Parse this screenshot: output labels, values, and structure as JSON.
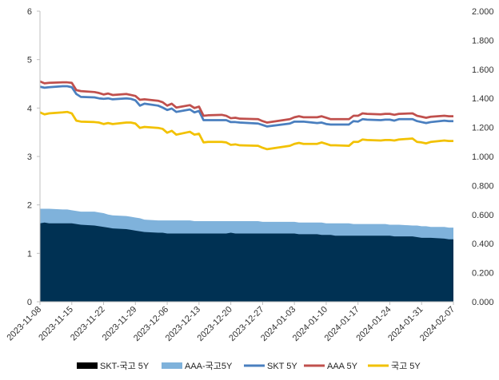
{
  "chart_data": {
    "type": "area",
    "title": "",
    "xlabel": "",
    "ylabel": "",
    "y_left": {
      "min": 0,
      "max": 6,
      "ticks": [
        "0",
        "1",
        "2",
        "3",
        "4",
        "5",
        "6"
      ]
    },
    "y_right": {
      "min": 0,
      "max": 2,
      "ticks": [
        "0.000",
        "0.200",
        "0.400",
        "0.600",
        "0.800",
        "1.000",
        "1.200",
        "1.400",
        "1.600",
        "1.800",
        "2.000"
      ]
    },
    "grid": false,
    "legend_position": "bottom",
    "x_ticks": [
      "2023-11-08",
      "2023-11-15",
      "2023-11-22",
      "2023-11-29",
      "2023-12-06",
      "2023-12-13",
      "2023-12-20",
      "2023-12-27",
      "2024-01-03",
      "2024-01-10",
      "2024-01-17",
      "2024-01-24",
      "2024-01-31",
      "2024-02-07"
    ],
    "x": [
      "2023-11-08",
      "2023-11-09",
      "2023-11-10",
      "2023-11-13",
      "2023-11-14",
      "2023-11-15",
      "2023-11-16",
      "2023-11-17",
      "2023-11-20",
      "2023-11-21",
      "2023-11-22",
      "2023-11-23",
      "2023-11-24",
      "2023-11-27",
      "2023-11-28",
      "2023-11-29",
      "2023-11-30",
      "2023-12-01",
      "2023-12-04",
      "2023-12-05",
      "2023-12-06",
      "2023-12-07",
      "2023-12-08",
      "2023-12-11",
      "2023-12-12",
      "2023-12-13",
      "2023-12-14",
      "2023-12-15",
      "2023-12-18",
      "2023-12-19",
      "2023-12-20",
      "2023-12-21",
      "2023-12-22",
      "2023-12-26",
      "2023-12-27",
      "2023-12-28",
      "2024-01-02",
      "2024-01-03",
      "2024-01-04",
      "2024-01-05",
      "2024-01-08",
      "2024-01-09",
      "2024-01-10",
      "2024-01-11",
      "2024-01-12",
      "2024-01-15",
      "2024-01-16",
      "2024-01-17",
      "2024-01-18",
      "2024-01-19",
      "2024-01-22",
      "2024-01-23",
      "2024-01-24",
      "2024-01-25",
      "2024-01-26",
      "2024-01-29",
      "2024-01-30",
      "2024-01-31",
      "2024-02-01",
      "2024-02-02",
      "2024-02-05",
      "2024-02-06",
      "2024-02-07"
    ],
    "series": [
      {
        "name": "SKT-국고 5Y",
        "type": "area",
        "axis": "right",
        "color": "#003153",
        "values": [
          0.54,
          0.545,
          0.54,
          0.54,
          0.54,
          0.54,
          0.535,
          0.53,
          0.525,
          0.52,
          0.515,
          0.51,
          0.505,
          0.5,
          0.495,
          0.49,
          0.485,
          0.48,
          0.475,
          0.475,
          0.47,
          0.47,
          0.47,
          0.47,
          0.47,
          0.47,
          0.47,
          0.47,
          0.47,
          0.47,
          0.475,
          0.47,
          0.47,
          0.47,
          0.47,
          0.47,
          0.47,
          0.47,
          0.465,
          0.465,
          0.465,
          0.46,
          0.46,
          0.46,
          0.455,
          0.455,
          0.455,
          0.455,
          0.455,
          0.455,
          0.455,
          0.455,
          0.455,
          0.45,
          0.45,
          0.45,
          0.445,
          0.44,
          0.44,
          0.44,
          0.435,
          0.43,
          0.43
        ]
      },
      {
        "name": "AAA-국고5Y",
        "type": "area",
        "axis": "right",
        "color": "#7FB2DB",
        "values": [
          0.64,
          0.64,
          0.64,
          0.635,
          0.635,
          0.63,
          0.625,
          0.62,
          0.62,
          0.615,
          0.61,
          0.6,
          0.595,
          0.59,
          0.585,
          0.58,
          0.575,
          0.565,
          0.56,
          0.56,
          0.56,
          0.56,
          0.56,
          0.56,
          0.555,
          0.555,
          0.555,
          0.555,
          0.555,
          0.555,
          0.555,
          0.555,
          0.555,
          0.555,
          0.55,
          0.55,
          0.55,
          0.55,
          0.545,
          0.545,
          0.545,
          0.545,
          0.54,
          0.54,
          0.54,
          0.54,
          0.535,
          0.535,
          0.535,
          0.535,
          0.535,
          0.535,
          0.53,
          0.53,
          0.53,
          0.525,
          0.525,
          0.52,
          0.52,
          0.515,
          0.515,
          0.51,
          0.51
        ]
      },
      {
        "name": "SKT 5Y",
        "type": "line",
        "axis": "left",
        "color": "#4A7FBF",
        "values": [
          4.44,
          4.42,
          4.43,
          4.45,
          4.45,
          4.43,
          4.29,
          4.23,
          4.22,
          4.2,
          4.19,
          4.2,
          4.18,
          4.2,
          4.19,
          4.16,
          4.05,
          4.09,
          4.05,
          4.01,
          3.96,
          3.99,
          3.92,
          3.97,
          3.91,
          3.94,
          3.75,
          3.75,
          3.75,
          3.75,
          3.71,
          3.71,
          3.7,
          3.68,
          3.65,
          3.62,
          3.68,
          3.72,
          3.72,
          3.72,
          3.69,
          3.7,
          3.67,
          3.66,
          3.66,
          3.66,
          3.73,
          3.72,
          3.77,
          3.76,
          3.75,
          3.76,
          3.76,
          3.74,
          3.77,
          3.77,
          3.73,
          3.71,
          3.69,
          3.71,
          3.74,
          3.73,
          3.73
        ]
      },
      {
        "name": "AAA 5Y",
        "type": "line",
        "axis": "left",
        "color": "#C0504D",
        "values": [
          4.55,
          4.51,
          4.52,
          4.53,
          4.53,
          4.52,
          4.37,
          4.35,
          4.33,
          4.31,
          4.28,
          4.3,
          4.27,
          4.29,
          4.27,
          4.25,
          4.17,
          4.18,
          4.15,
          4.12,
          4.05,
          4.09,
          4.01,
          4.06,
          4.0,
          4.03,
          3.84,
          3.85,
          3.86,
          3.84,
          3.79,
          3.8,
          3.78,
          3.77,
          3.73,
          3.7,
          3.77,
          3.81,
          3.83,
          3.81,
          3.81,
          3.83,
          3.8,
          3.77,
          3.77,
          3.77,
          3.84,
          3.84,
          3.89,
          3.88,
          3.87,
          3.88,
          3.88,
          3.86,
          3.88,
          3.89,
          3.84,
          3.82,
          3.8,
          3.82,
          3.84,
          3.83,
          3.83
        ]
      },
      {
        "name": "국고 5Y",
        "type": "line",
        "axis": "left",
        "color": "#F2C100",
        "values": [
          3.91,
          3.87,
          3.89,
          3.91,
          3.92,
          3.89,
          3.74,
          3.72,
          3.71,
          3.7,
          3.67,
          3.69,
          3.67,
          3.7,
          3.7,
          3.68,
          3.59,
          3.61,
          3.59,
          3.57,
          3.49,
          3.53,
          3.45,
          3.51,
          3.45,
          3.47,
          3.29,
          3.3,
          3.3,
          3.29,
          3.24,
          3.25,
          3.23,
          3.22,
          3.18,
          3.15,
          3.22,
          3.26,
          3.28,
          3.26,
          3.26,
          3.29,
          3.26,
          3.23,
          3.23,
          3.22,
          3.3,
          3.3,
          3.35,
          3.34,
          3.33,
          3.34,
          3.34,
          3.33,
          3.35,
          3.37,
          3.3,
          3.29,
          3.27,
          3.3,
          3.33,
          3.32,
          3.32
        ]
      }
    ],
    "legend": [
      {
        "label": "SKT-국고 5Y",
        "kind": "box",
        "color": "#000000"
      },
      {
        "label": "AAA-국고5Y",
        "kind": "box",
        "color": "#7FB2DB"
      },
      {
        "label": "SKT 5Y",
        "kind": "line",
        "color": "#4A7FBF"
      },
      {
        "label": "AAA 5Y",
        "kind": "line",
        "color": "#C0504D"
      },
      {
        "label": "국고 5Y",
        "kind": "line",
        "color": "#F2C100"
      }
    ]
  }
}
